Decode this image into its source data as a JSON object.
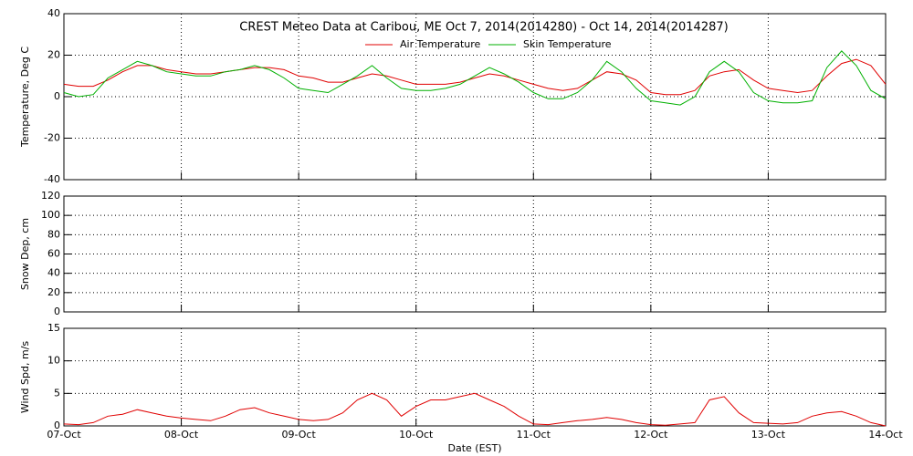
{
  "chart_data": [
    {
      "type": "line",
      "title": "CREST Meteo Data at Caribou, ME   Oct  7, 2014(2014280) - Oct 14, 2014(2014287)",
      "ylabel": "Temperature, Deg C",
      "ylim": [
        -40,
        40
      ],
      "yticks": [
        -40,
        -20,
        0,
        20,
        40
      ],
      "xlim": [
        "2014-10-07T00:00",
        "2014-10-14T00:00"
      ],
      "grid": true,
      "x": [
        "2014-10-07T00:00",
        "2014-10-07T03:00",
        "2014-10-07T06:00",
        "2014-10-07T09:00",
        "2014-10-07T12:00",
        "2014-10-07T15:00",
        "2014-10-07T18:00",
        "2014-10-07T21:00",
        "2014-10-08T00:00",
        "2014-10-08T03:00",
        "2014-10-08T06:00",
        "2014-10-08T09:00",
        "2014-10-08T12:00",
        "2014-10-08T15:00",
        "2014-10-08T18:00",
        "2014-10-08T21:00",
        "2014-10-09T00:00",
        "2014-10-09T03:00",
        "2014-10-09T06:00",
        "2014-10-09T09:00",
        "2014-10-09T12:00",
        "2014-10-09T15:00",
        "2014-10-09T18:00",
        "2014-10-09T21:00",
        "2014-10-10T00:00",
        "2014-10-10T03:00",
        "2014-10-10T06:00",
        "2014-10-10T09:00",
        "2014-10-10T12:00",
        "2014-10-10T15:00",
        "2014-10-10T18:00",
        "2014-10-10T21:00",
        "2014-10-11T00:00",
        "2014-10-11T03:00",
        "2014-10-11T06:00",
        "2014-10-11T09:00",
        "2014-10-11T12:00",
        "2014-10-11T15:00",
        "2014-10-11T18:00",
        "2014-10-11T21:00",
        "2014-10-12T00:00",
        "2014-10-12T03:00",
        "2014-10-12T06:00",
        "2014-10-12T09:00",
        "2014-10-12T12:00",
        "2014-10-12T15:00",
        "2014-10-12T18:00",
        "2014-10-12T21:00",
        "2014-10-13T00:00",
        "2014-10-13T03:00",
        "2014-10-13T06:00",
        "2014-10-13T09:00",
        "2014-10-13T12:00",
        "2014-10-13T15:00",
        "2014-10-13T18:00",
        "2014-10-13T21:00",
        "2014-10-14T00:00"
      ],
      "series": [
        {
          "name": "Air Temperature",
          "color": "#e00000",
          "values": [
            6,
            5,
            5,
            8,
            12,
            15,
            15,
            13,
            12,
            11,
            11,
            12,
            13,
            14,
            14,
            13,
            10,
            9,
            7,
            7,
            9,
            11,
            10,
            8,
            6,
            6,
            6,
            7,
            9,
            11,
            10,
            8,
            6,
            4,
            3,
            4,
            8,
            12,
            11,
            8,
            2,
            1,
            1,
            3,
            10,
            12,
            13,
            8,
            4,
            3,
            2,
            3,
            10,
            16,
            18,
            15,
            6
          ]
        },
        {
          "name": "Skin Temperature",
          "color": "#00b000",
          "values": [
            2,
            0,
            1,
            9,
            13,
            17,
            15,
            12,
            11,
            10,
            10,
            12,
            13,
            15,
            13,
            9,
            4,
            3,
            2,
            6,
            10,
            15,
            9,
            4,
            3,
            3,
            4,
            6,
            10,
            14,
            11,
            7,
            2,
            -1,
            -1,
            2,
            8,
            17,
            12,
            4,
            -2,
            -3,
            -4,
            0,
            12,
            17,
            12,
            2,
            -2,
            -3,
            -3,
            -2,
            14,
            22,
            15,
            3,
            -1
          ]
        }
      ]
    },
    {
      "type": "line",
      "ylabel": "Snow Dep, cm",
      "ylim": [
        0,
        120
      ],
      "yticks": [
        0,
        20,
        40,
        60,
        80,
        100,
        120
      ],
      "xlim": [
        "2014-10-07T00:00",
        "2014-10-14T00:00"
      ],
      "grid": true,
      "series": []
    },
    {
      "type": "line",
      "ylabel": "Wind Spd, m/s",
      "xlabel": "Date (EST)",
      "ylim": [
        0,
        15
      ],
      "yticks": [
        0,
        5,
        10,
        15
      ],
      "xlim": [
        "2014-10-07T00:00",
        "2014-10-14T00:00"
      ],
      "grid": true,
      "xticks": [
        {
          "value": "2014-10-07T00:00",
          "label": "07-Oct"
        },
        {
          "value": "2014-10-08T00:00",
          "label": "08-Oct"
        },
        {
          "value": "2014-10-09T00:00",
          "label": "09-Oct"
        },
        {
          "value": "2014-10-10T00:00",
          "label": "10-Oct"
        },
        {
          "value": "2014-10-11T00:00",
          "label": "11-Oct"
        },
        {
          "value": "2014-10-12T00:00",
          "label": "12-Oct"
        },
        {
          "value": "2014-10-13T00:00",
          "label": "13-Oct"
        },
        {
          "value": "2014-10-14T00:00",
          "label": "14-Oct"
        }
      ],
      "x": [
        "2014-10-07T00:00",
        "2014-10-07T03:00",
        "2014-10-07T06:00",
        "2014-10-07T09:00",
        "2014-10-07T12:00",
        "2014-10-07T15:00",
        "2014-10-07T18:00",
        "2014-10-07T21:00",
        "2014-10-08T00:00",
        "2014-10-08T03:00",
        "2014-10-08T06:00",
        "2014-10-08T09:00",
        "2014-10-08T12:00",
        "2014-10-08T15:00",
        "2014-10-08T18:00",
        "2014-10-08T21:00",
        "2014-10-09T00:00",
        "2014-10-09T03:00",
        "2014-10-09T06:00",
        "2014-10-09T09:00",
        "2014-10-09T12:00",
        "2014-10-09T15:00",
        "2014-10-09T18:00",
        "2014-10-09T21:00",
        "2014-10-10T00:00",
        "2014-10-10T03:00",
        "2014-10-10T06:00",
        "2014-10-10T09:00",
        "2014-10-10T12:00",
        "2014-10-10T15:00",
        "2014-10-10T18:00",
        "2014-10-10T21:00",
        "2014-10-11T00:00",
        "2014-10-11T03:00",
        "2014-10-11T06:00",
        "2014-10-11T09:00",
        "2014-10-11T12:00",
        "2014-10-11T15:00",
        "2014-10-11T18:00",
        "2014-10-11T21:00",
        "2014-10-12T00:00",
        "2014-10-12T03:00",
        "2014-10-12T06:00",
        "2014-10-12T09:00",
        "2014-10-12T12:00",
        "2014-10-12T15:00",
        "2014-10-12T18:00",
        "2014-10-12T21:00",
        "2014-10-13T00:00",
        "2014-10-13T03:00",
        "2014-10-13T06:00",
        "2014-10-13T09:00",
        "2014-10-13T12:00",
        "2014-10-13T15:00",
        "2014-10-13T18:00",
        "2014-10-13T21:00",
        "2014-10-14T00:00"
      ],
      "series": [
        {
          "name": "Wind Speed",
          "color": "#e00000",
          "values": [
            0.3,
            0.2,
            0.5,
            1.5,
            1.8,
            2.5,
            2,
            1.5,
            1.2,
            1,
            0.8,
            1.5,
            2.5,
            2.8,
            2,
            1.5,
            1,
            0.8,
            1,
            2,
            4,
            5,
            4,
            1.5,
            3,
            4,
            4,
            4.5,
            5,
            4,
            3,
            1.5,
            0.3,
            0.2,
            0.5,
            0.8,
            1,
            1.3,
            1,
            0.5,
            0.2,
            0.1,
            0.3,
            0.5,
            4,
            4.5,
            2,
            0.5,
            0.4,
            0.3,
            0.5,
            1.5,
            2,
            2.2,
            1.5,
            0.5,
            0
          ]
        }
      ]
    }
  ]
}
